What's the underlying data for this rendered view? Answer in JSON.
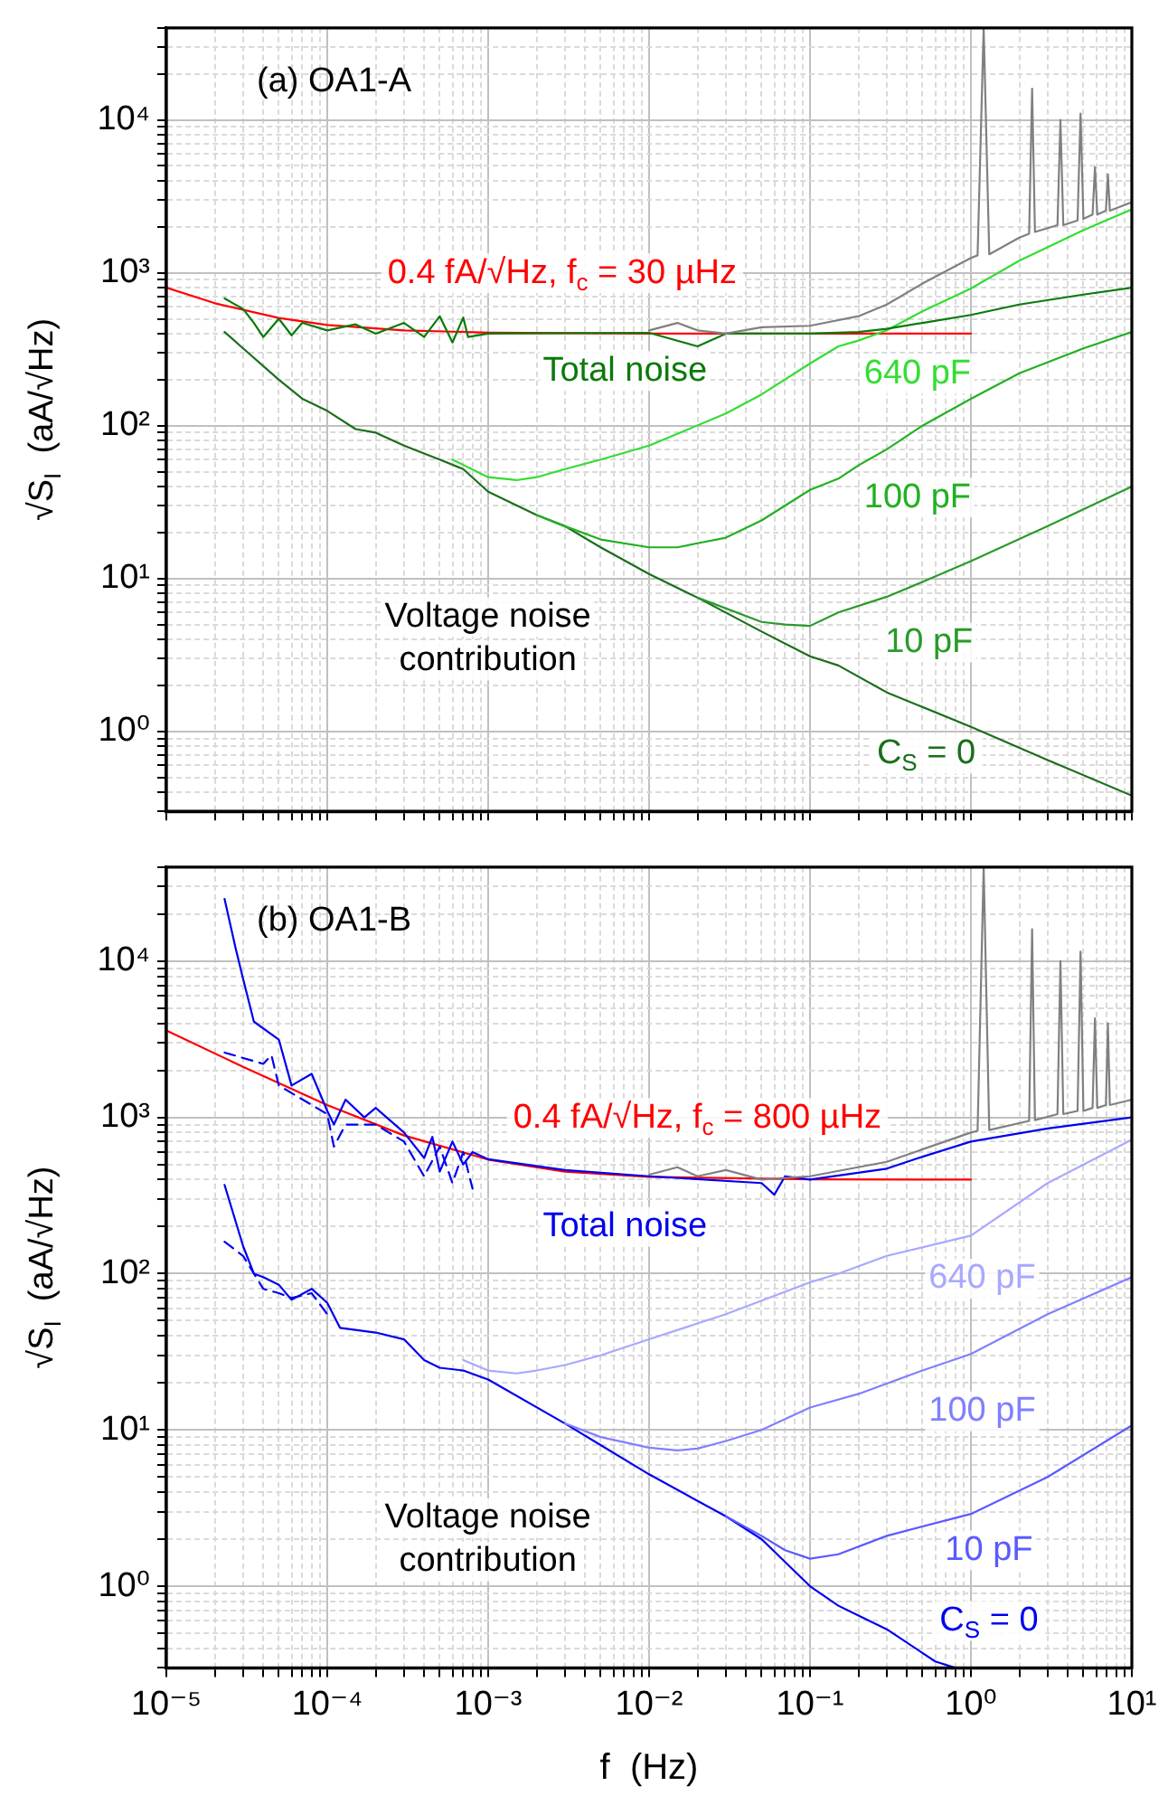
{
  "chart_data": [
    {
      "type": "line",
      "title": "(a) OA1-A",
      "ylabel": "√S$_{I}$  (aA/√Hz)",
      "log": "xy",
      "grid": true,
      "marker": "none",
      "tick_labels": "y",
      "xlim": [
        1e-05,
        10
      ],
      "ylim": [
        0.3,
        40000
      ],
      "xticks": [
        1e-05,
        {
          "value": 2e-05,
          "label": null
        },
        {
          "value": 3e-05,
          "label": null
        },
        {
          "value": 4e-05,
          "label": null
        },
        {
          "value": 5e-05,
          "label": null
        },
        {
          "value": 6e-05,
          "label": null
        },
        {
          "value": 7e-05,
          "label": null
        },
        {
          "value": 8e-05,
          "label": null
        },
        {
          "value": 9e-05,
          "label": null
        },
        0.0001,
        {
          "value": 0.0002,
          "label": null
        },
        {
          "value": 0.0003,
          "label": null
        },
        {
          "value": 0.0004,
          "label": null
        },
        {
          "value": 0.0005,
          "label": null
        },
        {
          "value": 0.0006,
          "label": null
        },
        {
          "value": 0.0007,
          "label": null
        },
        {
          "value": 0.0008,
          "label": null
        },
        {
          "value": 0.0009,
          "label": null
        },
        0.001,
        {
          "value": 0.002,
          "label": null
        },
        {
          "value": 0.003,
          "label": null
        },
        {
          "value": 0.004,
          "label": null
        },
        {
          "value": 0.005,
          "label": null
        },
        {
          "value": 0.006,
          "label": null
        },
        {
          "value": 0.007,
          "label": null
        },
        {
          "value": 0.008,
          "label": null
        },
        {
          "value": 0.009,
          "label": null
        },
        0.01,
        {
          "value": 0.02,
          "label": null
        },
        {
          "value": 0.03,
          "label": null
        },
        {
          "value": 0.04,
          "label": null
        },
        {
          "value": 0.05,
          "label": null
        },
        {
          "value": 0.06,
          "label": null
        },
        {
          "value": 0.07,
          "label": null
        },
        {
          "value": 0.08,
          "label": null
        },
        {
          "value": 0.09,
          "label": null
        },
        0.1,
        {
          "value": 0.2,
          "label": null
        },
        {
          "value": 0.3,
          "label": null
        },
        {
          "value": 0.4,
          "label": null
        },
        {
          "value": 0.5,
          "label": null
        },
        {
          "value": 0.6,
          "label": null
        },
        {
          "value": 0.7,
          "label": null
        },
        {
          "value": 0.8,
          "label": null
        },
        {
          "value": 0.9,
          "label": null
        },
        1,
        {
          "value": 2,
          "label": null
        },
        {
          "value": 3,
          "label": null
        },
        {
          "value": 4,
          "label": null
        },
        {
          "value": 5,
          "label": null
        },
        {
          "value": 6,
          "label": null
        },
        {
          "value": 7,
          "label": null
        },
        {
          "value": 8,
          "label": null
        },
        {
          "value": 9,
          "label": null
        },
        10
      ],
      "yticks": [
        {
          "value": 0.3,
          "label": null
        },
        {
          "value": 0.4,
          "label": null
        },
        {
          "value": 0.5,
          "label": null
        },
        {
          "value": 0.6,
          "label": null
        },
        {
          "value": 0.7,
          "label": null
        },
        {
          "value": 0.8,
          "label": null
        },
        {
          "value": 0.9,
          "label": null
        },
        {
          "value": 1,
          "label": "10⁰"
        },
        {
          "value": 2,
          "label": null
        },
        {
          "value": 3,
          "label": null
        },
        {
          "value": 4,
          "label": null
        },
        {
          "value": 5,
          "label": null
        },
        {
          "value": 6,
          "label": null
        },
        {
          "value": 7,
          "label": null
        },
        {
          "value": 8,
          "label": null
        },
        {
          "value": 9,
          "label": null
        },
        {
          "value": 10,
          "label": "10¹"
        },
        {
          "value": 20,
          "label": null
        },
        {
          "value": 30,
          "label": null
        },
        {
          "value": 40,
          "label": null
        },
        {
          "value": 50,
          "label": null
        },
        {
          "value": 60,
          "label": null
        },
        {
          "value": 70,
          "label": null
        },
        {
          "value": 80,
          "label": null
        },
        {
          "value": 90,
          "label": null
        },
        {
          "value": 100,
          "label": "10²"
        },
        {
          "value": 200,
          "label": null
        },
        {
          "value": 300,
          "label": null
        },
        {
          "value": 400,
          "label": null
        },
        {
          "value": 500,
          "label": null
        },
        {
          "value": 600,
          "label": null
        },
        {
          "value": 700,
          "label": null
        },
        {
          "value": 800,
          "label": null
        },
        {
          "value": 900,
          "label": null
        },
        {
          "value": 1000,
          "label": "10³"
        },
        {
          "value": 2000,
          "label": null
        },
        {
          "value": 3000,
          "label": null
        },
        {
          "value": 4000,
          "label": null
        },
        {
          "value": 5000,
          "label": null
        },
        {
          "value": 6000,
          "label": null
        },
        {
          "value": 7000,
          "label": null
        },
        {
          "value": 8000,
          "label": null
        },
        {
          "value": 9000,
          "label": null
        },
        {
          "value": 10000,
          "label": "10⁴"
        },
        {
          "value": 20000,
          "label": null
        },
        {
          "value": 30000,
          "label": null
        },
        {
          "value": 40000,
          "label": null
        }
      ],
      "annotations": [
        "Voltage noise\ncontribution"
      ],
      "series": [
        {
          "color": "#808080",
          "x": [
            0.01,
            0.015,
            0.02,
            0.03,
            0.05,
            0.1,
            0.2,
            0.3,
            0.5,
            1,
            1.1,
            1.2,
            1.3,
            2,
            2.3,
            2.4,
            2.5,
            3.45,
            3.6,
            3.75,
            4.6,
            4.8,
            5,
            5.7,
            5.9,
            6.1,
            6.9,
            7.1,
            7.3,
            10
          ],
          "values": [
            420,
            470,
            420,
            400,
            440,
            450,
            520,
            620,
            850,
            1250,
            1300,
            40000,
            1320,
            1700,
            1800,
            16000,
            1850,
            2050,
            10000,
            2050,
            2200,
            11000,
            2250,
            2400,
            4900,
            2400,
            2550,
            4400,
            2550,
            2900
          ]
        },
        {
          "name": "Total noise",
          "color": "#0a7a0a",
          "x": [
            2.3e-05,
            3e-05,
            3.5e-05,
            4e-05,
            5e-05,
            6e-05,
            7e-05,
            0.0001,
            0.00015,
            0.0002,
            0.0003,
            0.0004,
            0.0005,
            0.0006,
            0.0007,
            0.00075,
            0.001,
            0.01,
            0.02,
            0.03,
            0.1,
            0.2,
            0.3,
            0.5,
            1,
            2,
            5,
            10
          ],
          "values": [
            680,
            580,
            470,
            380,
            500,
            390,
            470,
            420,
            460,
            400,
            470,
            380,
            520,
            350,
            510,
            380,
            400,
            405,
            330,
            400,
            400,
            410,
            430,
            470,
            530,
            620,
            720,
            800
          ]
        },
        {
          "name": "640 pF",
          "color": "#33dd33",
          "x": [
            0.0006,
            0.001,
            0.0015,
            0.002,
            0.003,
            0.005,
            0.01,
            0.03,
            0.05,
            0.1,
            0.15,
            0.2,
            0.3,
            0.5,
            1,
            2,
            5,
            10
          ],
          "values": [
            60,
            46,
            44,
            46,
            52,
            60,
            74,
            120,
            160,
            255,
            330,
            360,
            420,
            560,
            790,
            1200,
            1900,
            2600
          ]
        },
        {
          "name": "100 pF",
          "color": "#22b022",
          "x": [
            0.002,
            0.003,
            0.005,
            0.01,
            0.015,
            0.02,
            0.03,
            0.05,
            0.1,
            0.15,
            0.2,
            0.3,
            0.5,
            1,
            2,
            5,
            10
          ],
          "values": [
            26,
            22,
            18,
            16,
            16,
            17,
            18.5,
            24,
            38,
            45,
            55,
            70,
            100,
            150,
            220,
            320,
            410
          ]
        },
        {
          "name": "10 pF",
          "color": "#2a9a2a",
          "x": [
            0.02,
            0.05,
            0.07,
            0.1,
            0.15,
            0.3,
            0.5,
            1,
            3,
            10
          ],
          "values": [
            7.5,
            5.2,
            5,
            4.9,
            6,
            7.6,
            9.5,
            13,
            22,
            40
          ]
        },
        {
          "name": "C$_{S}$ = 0",
          "color": "#1b6e1b",
          "x": [
            2.3e-05,
            3e-05,
            5e-05,
            7e-05,
            0.0001,
            0.00015,
            0.0002,
            0.0003,
            0.0005,
            0.0007,
            0.001,
            0.002,
            0.003,
            0.005,
            0.01,
            0.02,
            0.05,
            0.1,
            0.15,
            0.3,
            1,
            3,
            10
          ],
          "values": [
            410,
            320,
            200,
            150,
            125,
            95,
            90,
            74,
            60,
            52,
            37,
            26,
            22,
            16,
            10.7,
            7.5,
            4.5,
            3.1,
            2.7,
            1.8,
            1.07,
            0.65,
            0.38
          ]
        },
        {
          "name": "0.4 fA/√Hz, f$_{c}$ = 30 µHz",
          "color": "#ff0000",
          "x": [
            1e-05,
            2e-05,
            5e-05,
            0.0001,
            0.0003,
            0.001,
            0.01,
            1
          ],
          "values": [
            800,
            632,
            506,
            456,
            420,
            406,
            400,
            400
          ]
        }
      ]
    },
    {
      "type": "line",
      "title": "(b) OA1-B",
      "xlabel": "f  (Hz)",
      "ylabel": "√S$_{I}$  (aA/√Hz)",
      "log": "xy",
      "grid": true,
      "marker": "none",
      "xlim": [
        1e-05,
        10
      ],
      "ylim": [
        0.3,
        40000
      ],
      "xticks": [
        {
          "value": 1e-05,
          "label": "10⁻⁵"
        },
        {
          "value": 2e-05,
          "label": null
        },
        {
          "value": 3e-05,
          "label": null
        },
        {
          "value": 4e-05,
          "label": null
        },
        {
          "value": 5e-05,
          "label": null
        },
        {
          "value": 6e-05,
          "label": null
        },
        {
          "value": 7e-05,
          "label": null
        },
        {
          "value": 8e-05,
          "label": null
        },
        {
          "value": 9e-05,
          "label": null
        },
        {
          "value": 0.0001,
          "label": "10⁻⁴"
        },
        {
          "value": 0.0002,
          "label": null
        },
        {
          "value": 0.0003,
          "label": null
        },
        {
          "value": 0.0004,
          "label": null
        },
        {
          "value": 0.0005,
          "label": null
        },
        {
          "value": 0.0006,
          "label": null
        },
        {
          "value": 0.0007,
          "label": null
        },
        {
          "value": 0.0008,
          "label": null
        },
        {
          "value": 0.0009,
          "label": null
        },
        {
          "value": 0.001,
          "label": "10⁻³"
        },
        {
          "value": 0.002,
          "label": null
        },
        {
          "value": 0.003,
          "label": null
        },
        {
          "value": 0.004,
          "label": null
        },
        {
          "value": 0.005,
          "label": null
        },
        {
          "value": 0.006,
          "label": null
        },
        {
          "value": 0.007,
          "label": null
        },
        {
          "value": 0.008,
          "label": null
        },
        {
          "value": 0.009,
          "label": null
        },
        {
          "value": 0.01,
          "label": "10⁻²"
        },
        {
          "value": 0.02,
          "label": null
        },
        {
          "value": 0.03,
          "label": null
        },
        {
          "value": 0.04,
          "label": null
        },
        {
          "value": 0.05,
          "label": null
        },
        {
          "value": 0.06,
          "label": null
        },
        {
          "value": 0.07,
          "label": null
        },
        {
          "value": 0.08,
          "label": null
        },
        {
          "value": 0.09,
          "label": null
        },
        {
          "value": 0.1,
          "label": "10⁻¹"
        },
        {
          "value": 0.2,
          "label": null
        },
        {
          "value": 0.3,
          "label": null
        },
        {
          "value": 0.4,
          "label": null
        },
        {
          "value": 0.5,
          "label": null
        },
        {
          "value": 0.6,
          "label": null
        },
        {
          "value": 0.7,
          "label": null
        },
        {
          "value": 0.8,
          "label": null
        },
        {
          "value": 0.9,
          "label": null
        },
        {
          "value": 1,
          "label": "10⁰"
        },
        {
          "value": 2,
          "label": null
        },
        {
          "value": 3,
          "label": null
        },
        {
          "value": 4,
          "label": null
        },
        {
          "value": 5,
          "label": null
        },
        {
          "value": 6,
          "label": null
        },
        {
          "value": 7,
          "label": null
        },
        {
          "value": 8,
          "label": null
        },
        {
          "value": 9,
          "label": null
        },
        {
          "value": 10,
          "label": "10¹"
        }
      ],
      "yticks": [
        {
          "value": 0.3,
          "label": null
        },
        {
          "value": 0.4,
          "label": null
        },
        {
          "value": 0.5,
          "label": null
        },
        {
          "value": 0.6,
          "label": null
        },
        {
          "value": 0.7,
          "label": null
        },
        {
          "value": 0.8,
          "label": null
        },
        {
          "value": 0.9,
          "label": null
        },
        {
          "value": 1,
          "label": "10⁰"
        },
        {
          "value": 2,
          "label": null
        },
        {
          "value": 3,
          "label": null
        },
        {
          "value": 4,
          "label": null
        },
        {
          "value": 5,
          "label": null
        },
        {
          "value": 6,
          "label": null
        },
        {
          "value": 7,
          "label": null
        },
        {
          "value": 8,
          "label": null
        },
        {
          "value": 9,
          "label": null
        },
        {
          "value": 10,
          "label": "10¹"
        },
        {
          "value": 20,
          "label": null
        },
        {
          "value": 30,
          "label": null
        },
        {
          "value": 40,
          "label": null
        },
        {
          "value": 50,
          "label": null
        },
        {
          "value": 60,
          "label": null
        },
        {
          "value": 70,
          "label": null
        },
        {
          "value": 80,
          "label": null
        },
        {
          "value": 90,
          "label": null
        },
        {
          "value": 100,
          "label": "10²"
        },
        {
          "value": 200,
          "label": null
        },
        {
          "value": 300,
          "label": null
        },
        {
          "value": 400,
          "label": null
        },
        {
          "value": 500,
          "label": null
        },
        {
          "value": 600,
          "label": null
        },
        {
          "value": 700,
          "label": null
        },
        {
          "value": 800,
          "label": null
        },
        {
          "value": 900,
          "label": null
        },
        {
          "value": 1000,
          "label": "10³"
        },
        {
          "value": 2000,
          "label": null
        },
        {
          "value": 3000,
          "label": null
        },
        {
          "value": 4000,
          "label": null
        },
        {
          "value": 5000,
          "label": null
        },
        {
          "value": 6000,
          "label": null
        },
        {
          "value": 7000,
          "label": null
        },
        {
          "value": 8000,
          "label": null
        },
        {
          "value": 9000,
          "label": null
        },
        {
          "value": 10000,
          "label": "10⁴"
        },
        {
          "value": 20000,
          "label": null
        },
        {
          "value": 30000,
          "label": null
        },
        {
          "value": 40000,
          "label": null
        }
      ],
      "annotations": [
        "Voltage noise\ncontribution"
      ],
      "series": [
        {
          "color": "#808080",
          "x": [
            0.01,
            0.015,
            0.02,
            0.03,
            0.05,
            0.1,
            0.3,
            1,
            1.1,
            1.2,
            1.3,
            2.3,
            2.4,
            2.5,
            3.45,
            3.6,
            3.75,
            4.6,
            4.8,
            5,
            5.7,
            5.9,
            6.1,
            6.9,
            7.1,
            7.3,
            10
          ],
          "values": [
            430,
            480,
            420,
            460,
            400,
            420,
            520,
            800,
            820,
            40000,
            830,
            950,
            16000,
            960,
            1050,
            10000,
            1050,
            1100,
            11500,
            1100,
            1150,
            4300,
            1150,
            1200,
            4000,
            1200,
            1300
          ]
        },
        {
          "name": "Total noise",
          "color": "#0000ee",
          "x": [
            2.3e-05,
            2.7e-05,
            3e-05,
            3.5e-05,
            5e-05,
            6e-05,
            8e-05,
            0.0001,
            0.00011,
            0.00013,
            0.00017,
            0.0002,
            0.0003,
            0.0004,
            0.00045,
            0.0005,
            0.0006,
            0.0007,
            0.0008,
            0.001,
            0.003,
            0.01,
            0.05,
            0.06,
            0.07,
            0.1,
            0.3,
            0.5,
            1,
            3,
            10
          ],
          "values": [
            25000,
            12000,
            7700,
            4100,
            3150,
            1600,
            1900,
            1100,
            900,
            1300,
            1000,
            1150,
            800,
            550,
            750,
            450,
            700,
            500,
            600,
            540,
            460,
            420,
            380,
            320,
            420,
            400,
            470,
            560,
            700,
            850,
            1000
          ]
        },
        {
          "color": "#0000ee",
          "line_style": "dashed",
          "x": [
            2.3e-05,
            3e-05,
            4e-05,
            4.5e-05,
            5e-05,
            0.0001,
            0.00011,
            0.00013,
            0.0002,
            0.0003,
            0.0004,
            0.0005,
            0.0006,
            0.0007,
            0.0008
          ],
          "values": [
            2600,
            2400,
            2200,
            2500,
            1600,
            1050,
            650,
            900,
            900,
            700,
            420,
            650,
            380,
            600,
            350
          ]
        },
        {
          "name": "640 pF",
          "color": "#a8a8ff",
          "x": [
            0.0007,
            0.001,
            0.0015,
            0.002,
            0.003,
            0.005,
            0.01,
            0.03,
            0.1,
            0.15,
            0.3,
            1,
            3,
            10
          ],
          "values": [
            28,
            24,
            23,
            24,
            26,
            30,
            38,
            55,
            88,
            100,
            130,
            175,
            380,
            720
          ]
        },
        {
          "name": "100 pF",
          "color": "#8080ff",
          "x": [
            0.003,
            0.005,
            0.01,
            0.015,
            0.02,
            0.03,
            0.05,
            0.1,
            0.2,
            0.5,
            1,
            3,
            10
          ],
          "values": [
            11,
            9,
            7.7,
            7.4,
            7.6,
            8.5,
            10,
            13.9,
            17,
            24,
            30.6,
            55,
            95
          ]
        },
        {
          "name": "10 pF",
          "color": "#5a5aff",
          "x": [
            0.03,
            0.05,
            0.07,
            0.1,
            0.15,
            0.3,
            1,
            3,
            10
          ],
          "values": [
            2.8,
            2.1,
            1.7,
            1.5,
            1.6,
            2.1,
            2.9,
            5,
            10.7
          ]
        },
        {
          "name": "C$_{S}$ = 0",
          "color": "#0000ee",
          "x": [
            2.3e-05,
            3e-05,
            3.5e-05,
            4e-05,
            5e-05,
            6e-05,
            8e-05,
            0.0001,
            0.00012,
            0.0002,
            0.0003,
            0.0004,
            0.0005,
            0.0007,
            0.001,
            0.003,
            0.005,
            0.01,
            0.03,
            0.05,
            0.1,
            0.15,
            0.3,
            0.6,
            0.8
          ],
          "values": [
            370,
            150,
            100,
            95,
            85,
            68,
            80,
            65,
            45,
            42,
            38,
            28,
            25,
            24,
            21,
            11,
            8,
            5.2,
            2.8,
            2,
            1,
            0.75,
            0.53,
            0.33,
            0.3
          ]
        },
        {
          "color": "#0000ee",
          "line_style": "dashed",
          "x": [
            2.3e-05,
            3e-05,
            4e-05,
            5e-05,
            6e-05,
            8e-05,
            0.0001
          ],
          "values": [
            160,
            130,
            80,
            75,
            70,
            75,
            55
          ]
        },
        {
          "name": "0.4 fA/√Hz, f$_{c}$ = 800 µHz",
          "color": "#ff0000",
          "x": [
            1e-05,
            3e-05,
            0.0001,
            0.0003,
            0.001,
            0.003,
            0.01,
            0.1,
            1
          ],
          "values": [
            3600,
            2105,
            1200,
            766,
            537,
            450,
            416,
            402,
            400
          ]
        }
      ]
    }
  ]
}
